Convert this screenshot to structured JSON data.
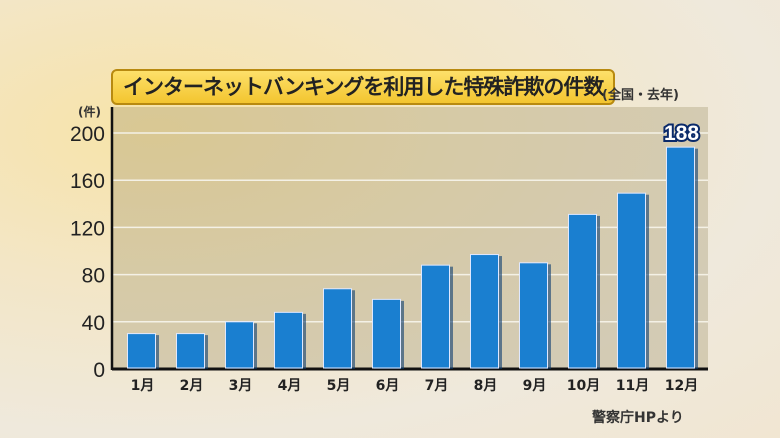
{
  "chart_data": {
    "type": "bar",
    "title": "インターネットバンキングを利用した特殊詐欺の件数",
    "subtitle": "(全国・去年)",
    "ylabel": "(件)",
    "xlabel": "",
    "categories": [
      "1月",
      "2月",
      "3月",
      "4月",
      "5月",
      "6月",
      "7月",
      "8月",
      "9月",
      "10月",
      "11月",
      "12月"
    ],
    "values": [
      30,
      30,
      40,
      48,
      68,
      59,
      88,
      97,
      90,
      131,
      149,
      188
    ],
    "ylim": [
      0,
      200
    ],
    "yticks": [
      0,
      40,
      80,
      120,
      160,
      200
    ],
    "annotation": {
      "category": "12月",
      "text": "188"
    },
    "grid": true,
    "bar_color": "#1a7fd0",
    "source": "警察庁HPより"
  }
}
